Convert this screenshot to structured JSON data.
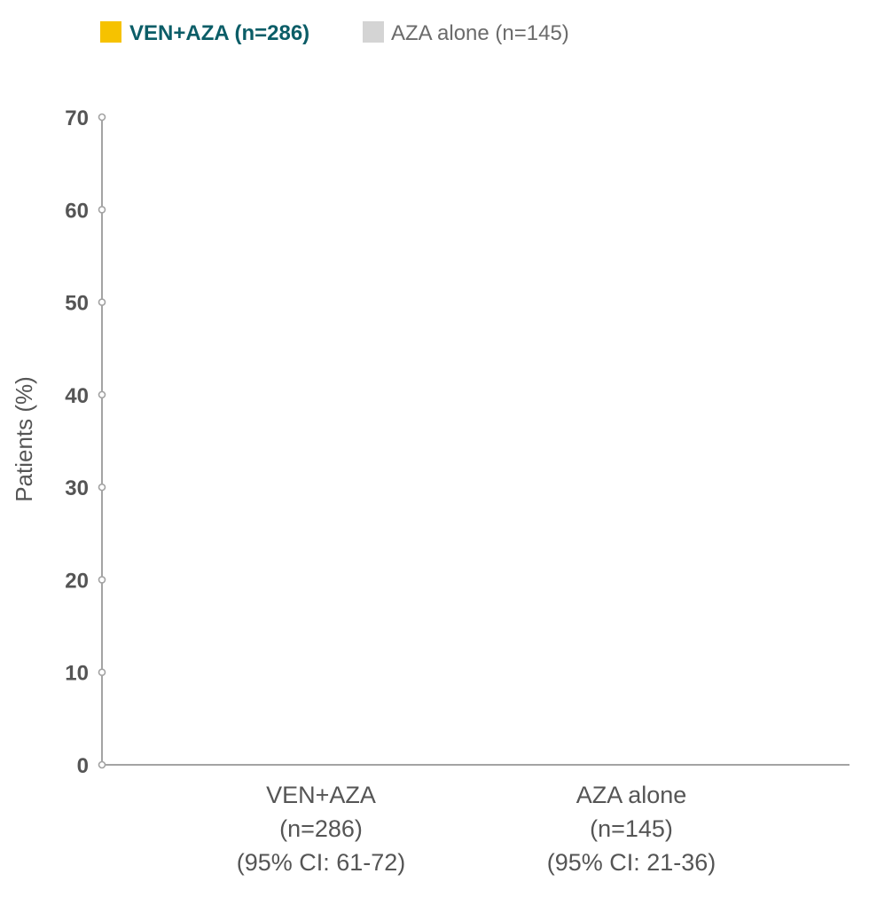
{
  "chart_data": {
    "type": "bar",
    "legend": {
      "position": "top-left",
      "items": [
        {
          "label": "VEN+AZA (n=286)",
          "color": "#f6c200",
          "text_color": "#0b5d67",
          "bold": true
        },
        {
          "label": "AZA alone (n=145)",
          "color": "#d4d4d4",
          "text_color": "#6b6b6b",
          "bold": false
        }
      ]
    },
    "ylabel": "Patients (%)",
    "xlabel": "",
    "ylim": [
      0,
      70
    ],
    "yticks": [
      "0",
      "10",
      "20",
      "30",
      "40",
      "50",
      "60",
      "70"
    ],
    "categories": [
      {
        "lines": [
          "VEN+AZA",
          "(n=286)",
          "(95% CI: 61-72)"
        ]
      },
      {
        "lines": [
          "AZA alone",
          "(n=145)",
          "(95% CI: 21-36)"
        ]
      }
    ],
    "series": [],
    "grid": false,
    "axis_color": "#a3a3a3",
    "text_color": "#555555"
  }
}
